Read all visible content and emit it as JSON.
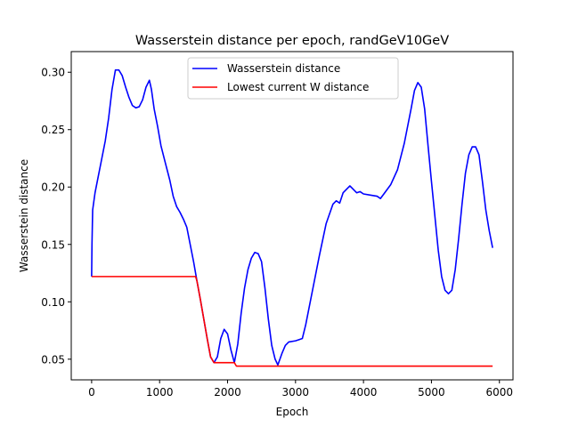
{
  "chart_data": {
    "type": "line",
    "title": "Wasserstein distance per epoch, randGeV10GeV",
    "xlabel": "Epoch",
    "ylabel": "Wasserstein distance",
    "xlim": [
      -300,
      6200
    ],
    "ylim": [
      0.032,
      0.318
    ],
    "xticks": [
      0,
      1000,
      2000,
      3000,
      4000,
      5000,
      6000
    ],
    "xtick_labels": [
      "0",
      "1000",
      "2000",
      "3000",
      "4000",
      "5000",
      "6000"
    ],
    "yticks": [
      0.05,
      0.1,
      0.15,
      0.2,
      0.25,
      0.3
    ],
    "ytick_labels": [
      "0.05",
      "0.10",
      "0.15",
      "0.20",
      "0.25",
      "0.30"
    ],
    "grid": false,
    "legend_position": "upper-center",
    "series": [
      {
        "name": "Wasserstein distance",
        "color": "#0000ff",
        "points": [
          [
            0,
            0.122
          ],
          [
            5,
            0.15
          ],
          [
            15,
            0.18
          ],
          [
            50,
            0.195
          ],
          [
            100,
            0.21
          ],
          [
            150,
            0.225
          ],
          [
            200,
            0.24
          ],
          [
            250,
            0.26
          ],
          [
            300,
            0.285
          ],
          [
            350,
            0.302
          ],
          [
            400,
            0.302
          ],
          [
            450,
            0.297
          ],
          [
            500,
            0.287
          ],
          [
            550,
            0.278
          ],
          [
            600,
            0.271
          ],
          [
            650,
            0.269
          ],
          [
            700,
            0.27
          ],
          [
            750,
            0.276
          ],
          [
            800,
            0.287
          ],
          [
            850,
            0.293
          ],
          [
            880,
            0.285
          ],
          [
            920,
            0.268
          ],
          [
            970,
            0.253
          ],
          [
            1020,
            0.236
          ],
          [
            1080,
            0.222
          ],
          [
            1150,
            0.206
          ],
          [
            1200,
            0.192
          ],
          [
            1250,
            0.183
          ],
          [
            1300,
            0.178
          ],
          [
            1350,
            0.172
          ],
          [
            1400,
            0.165
          ],
          [
            1450,
            0.15
          ],
          [
            1500,
            0.135
          ],
          [
            1550,
            0.118
          ],
          [
            1600,
            0.102
          ],
          [
            1650,
            0.085
          ],
          [
            1700,
            0.068
          ],
          [
            1750,
            0.052
          ],
          [
            1800,
            0.047
          ],
          [
            1850,
            0.052
          ],
          [
            1900,
            0.068
          ],
          [
            1950,
            0.076
          ],
          [
            2000,
            0.072
          ],
          [
            2050,
            0.058
          ],
          [
            2100,
            0.047
          ],
          [
            2150,
            0.063
          ],
          [
            2200,
            0.09
          ],
          [
            2250,
            0.112
          ],
          [
            2300,
            0.128
          ],
          [
            2350,
            0.138
          ],
          [
            2400,
            0.143
          ],
          [
            2450,
            0.142
          ],
          [
            2500,
            0.135
          ],
          [
            2550,
            0.112
          ],
          [
            2600,
            0.085
          ],
          [
            2650,
            0.062
          ],
          [
            2700,
            0.05
          ],
          [
            2740,
            0.045
          ],
          [
            2800,
            0.055
          ],
          [
            2850,
            0.062
          ],
          [
            2900,
            0.065
          ],
          [
            3000,
            0.066
          ],
          [
            3050,
            0.067
          ],
          [
            3100,
            0.068
          ],
          [
            3150,
            0.08
          ],
          [
            3250,
            0.11
          ],
          [
            3350,
            0.14
          ],
          [
            3450,
            0.168
          ],
          [
            3550,
            0.185
          ],
          [
            3600,
            0.188
          ],
          [
            3650,
            0.186
          ],
          [
            3700,
            0.195
          ],
          [
            3800,
            0.201
          ],
          [
            3850,
            0.198
          ],
          [
            3900,
            0.195
          ],
          [
            3950,
            0.196
          ],
          [
            4000,
            0.194
          ],
          [
            4100,
            0.193
          ],
          [
            4200,
            0.192
          ],
          [
            4250,
            0.19
          ],
          [
            4300,
            0.194
          ],
          [
            4400,
            0.202
          ],
          [
            4500,
            0.215
          ],
          [
            4600,
            0.238
          ],
          [
            4700,
            0.268
          ],
          [
            4750,
            0.284
          ],
          [
            4800,
            0.291
          ],
          [
            4850,
            0.287
          ],
          [
            4900,
            0.268
          ],
          [
            4950,
            0.236
          ],
          [
            5000,
            0.205
          ],
          [
            5050,
            0.175
          ],
          [
            5100,
            0.145
          ],
          [
            5150,
            0.122
          ],
          [
            5200,
            0.11
          ],
          [
            5250,
            0.107
          ],
          [
            5300,
            0.11
          ],
          [
            5350,
            0.128
          ],
          [
            5400,
            0.155
          ],
          [
            5450,
            0.185
          ],
          [
            5500,
            0.212
          ],
          [
            5550,
            0.228
          ],
          [
            5600,
            0.235
          ],
          [
            5650,
            0.235
          ],
          [
            5700,
            0.228
          ],
          [
            5750,
            0.205
          ],
          [
            5800,
            0.18
          ],
          [
            5850,
            0.162
          ],
          [
            5900,
            0.147
          ]
        ]
      },
      {
        "name": "Lowest current W distance",
        "color": "#ff0000",
        "points": [
          [
            0,
            0.122
          ],
          [
            1530,
            0.122
          ],
          [
            1550,
            0.118
          ],
          [
            1600,
            0.102
          ],
          [
            1650,
            0.085
          ],
          [
            1700,
            0.068
          ],
          [
            1750,
            0.052
          ],
          [
            1800,
            0.047
          ],
          [
            2100,
            0.047
          ],
          [
            2120,
            0.045
          ],
          [
            2130,
            0.044
          ],
          [
            5900,
            0.044
          ]
        ]
      }
    ]
  }
}
